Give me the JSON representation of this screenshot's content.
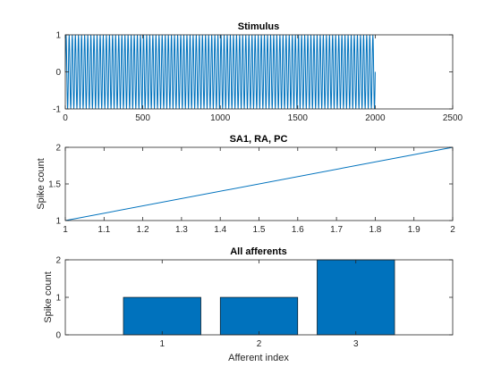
{
  "chart_data": [
    {
      "type": "line",
      "title": "Stimulus",
      "xlabel": "",
      "ylabel": "",
      "xlim": [
        0,
        2500
      ],
      "ylim": [
        -1,
        1
      ],
      "xticks": [
        0,
        500,
        1000,
        1500,
        2000,
        2500
      ],
      "yticks": [
        -1,
        0,
        1
      ],
      "grid": false,
      "series": [
        {
          "kind": "sine",
          "amplitude": 1,
          "x_start": 0,
          "x_end": 2000,
          "cycles": 100
        }
      ]
    },
    {
      "type": "line",
      "title": "SA1, RA, PC",
      "xlabel": "",
      "ylabel": "Spike count",
      "xlim": [
        1,
        2
      ],
      "ylim": [
        1,
        2
      ],
      "xticks": [
        1,
        1.1,
        1.2,
        1.3,
        1.4,
        1.5,
        1.6,
        1.7,
        1.8,
        1.9,
        2
      ],
      "yticks": [
        1,
        1.5,
        2
      ],
      "grid": false,
      "series": [
        {
          "x": [
            1,
            2
          ],
          "y": [
            1,
            2
          ]
        }
      ]
    },
    {
      "type": "bar",
      "title": "All afferents",
      "xlabel": "Afferent index",
      "ylabel": "Spike count",
      "xlim": [
        0,
        4
      ],
      "ylim": [
        0,
        2
      ],
      "categories": [
        1,
        2,
        3
      ],
      "values": [
        1,
        1,
        2
      ],
      "xticks": [
        1,
        2,
        3
      ],
      "yticks": [
        0,
        1,
        2
      ],
      "grid": false
    }
  ],
  "colors": {
    "line": "#0072BD",
    "bar": "#0072BD",
    "axis": "#262626"
  }
}
